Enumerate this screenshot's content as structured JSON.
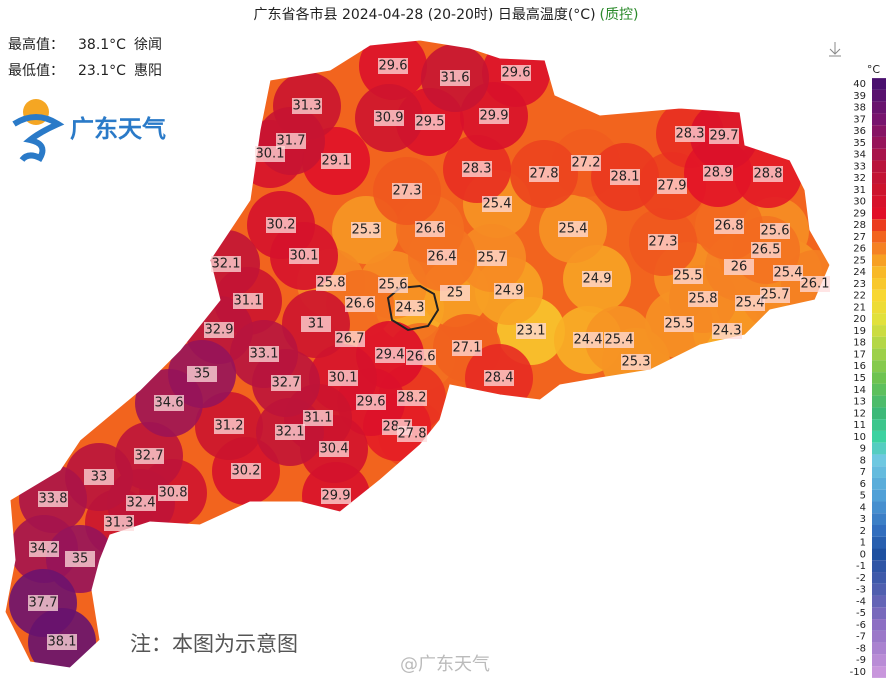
{
  "header": {
    "title": "广东省各市县 2024-04-28 (20-20时) 日最高温度(°C)",
    "qc": "(质控)"
  },
  "stats": {
    "max": {
      "label": "最高值：",
      "value": 38.1,
      "unit": "°C",
      "place": "徐闻"
    },
    "min": {
      "label": "最低值：",
      "value": 23.1,
      "unit": "°C",
      "place": "惠阳"
    }
  },
  "logo": "广东天气",
  "note": "注：本图为示意图",
  "watermark": "@广东天气",
  "legend": {
    "unit": "°C",
    "ticks": [
      40,
      39,
      38,
      37,
      36,
      35,
      34,
      33,
      32,
      31,
      30,
      29,
      28,
      27,
      26,
      25,
      24,
      23,
      22,
      21,
      20,
      19,
      18,
      17,
      16,
      15,
      14,
      13,
      12,
      11,
      10,
      9,
      8,
      7,
      6,
      5,
      4,
      3,
      2,
      1,
      0,
      -1,
      -2,
      -3,
      -4,
      -5,
      -6,
      -7,
      -8,
      -9,
      -10
    ]
  },
  "stations": [
    29.6,
    31.6,
    29.6,
    31.3,
    30.9,
    29.5,
    29.9,
    31.7,
    30.1,
    29.1,
    28.3,
    27.2,
    27.8,
    28.1,
    27.9,
    28.3,
    29.7,
    28.9,
    28.8,
    27.3,
    25.4,
    30.2,
    25.3,
    26.6,
    25.4,
    27.3,
    26.8,
    25.6,
    26.5,
    32.1,
    30.1,
    26.4,
    25.7,
    26.0,
    25.5,
    25.4,
    26.1,
    25.8,
    25.6,
    24.9,
    24.9,
    25.0,
    25.8,
    25.4,
    25.7,
    31.1,
    26.6,
    24.3,
    32.9,
    31.0,
    23.1,
    25.5,
    24.3,
    26.7,
    24.4,
    25.4,
    33.1,
    29.4,
    26.6,
    27.1,
    25.3,
    35.0,
    30.1,
    32.7,
    28.4,
    34.6,
    29.6,
    28.2,
    31.1,
    31.2,
    32.1,
    28.7,
    27.8,
    30.4,
    32.7,
    33.0,
    30.2,
    29.9,
    33.8,
    30.8,
    32.4,
    31.3,
    34.2,
    35.0,
    37.7,
    38.1
  ]
}
